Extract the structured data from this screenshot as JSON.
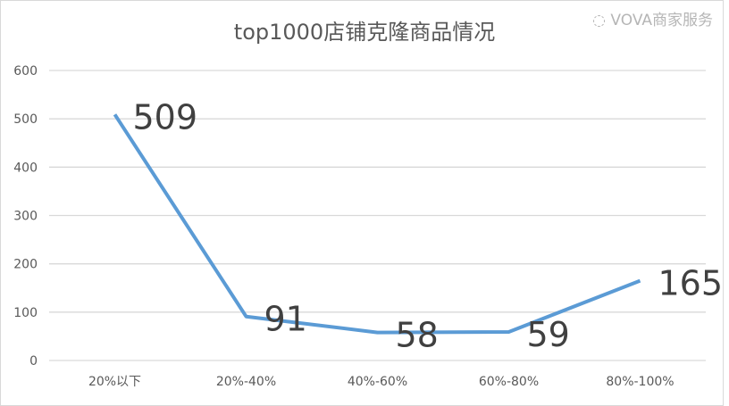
{
  "chart_data": {
    "type": "line",
    "title": "top1000店铺克隆商品情况",
    "categories": [
      "20%以下",
      "20%-40%",
      "40%-60%",
      "60%-80%",
      "80%-100%"
    ],
    "values": [
      509,
      91,
      58,
      59,
      165
    ],
    "data_labels": [
      "509",
      "91",
      "58",
      "59",
      "165"
    ],
    "ylim": [
      0,
      600
    ],
    "yticks": [
      0,
      100,
      200,
      300,
      400,
      500,
      600
    ],
    "ytick_labels": [
      "0",
      "100",
      "200",
      "300",
      "400",
      "500",
      "600"
    ],
    "grid": true,
    "legend": "none",
    "colors": {
      "line": "#5b9bd5",
      "grid": "#d9d9d9",
      "text": "#595959",
      "label": "#404040"
    }
  },
  "watermark": "VOVA商家服务"
}
